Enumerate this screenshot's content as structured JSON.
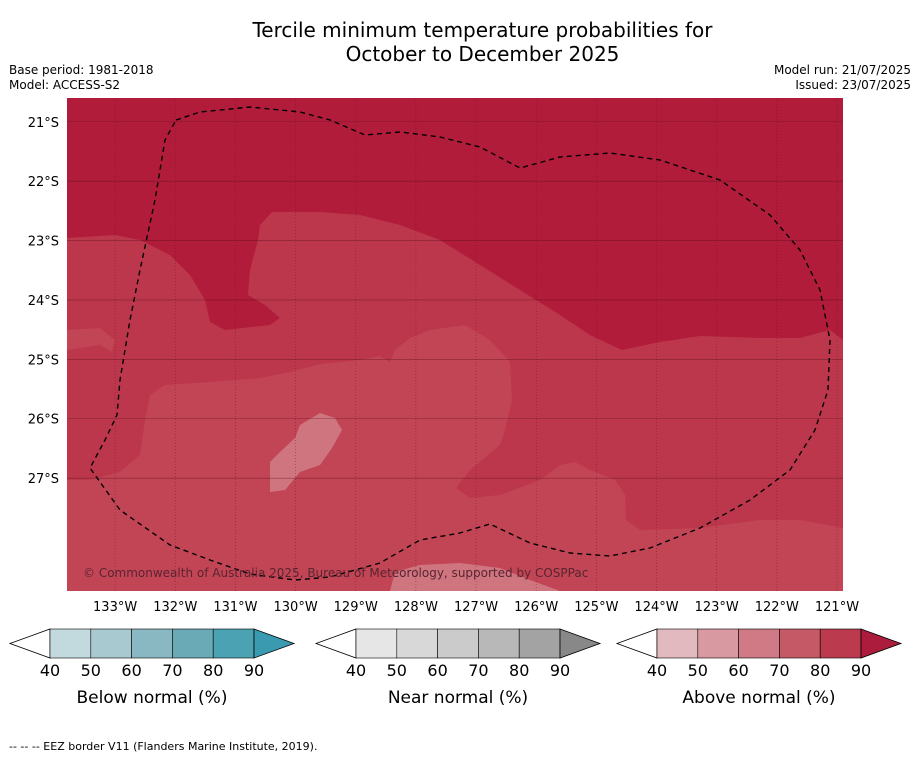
{
  "title_line1": "Tercile minimum temperature probabilities for",
  "title_line2": "October to December 2025",
  "meta_left": [
    "Base period: 1981-2018",
    "Model: ACCESS-S2"
  ],
  "meta_right": [
    "Model run: 21/07/2025",
    "Issued: 23/07/2025"
  ],
  "copyright": "© Commonwealth of Australia 2025, Bureau of Meteorology, supported by COSPPac",
  "footer": "-- -- -- EEZ border V11 (Flanders Marine Institute, 2019).",
  "map": {
    "lon_range": [
      -133.8,
      -120.9
    ],
    "lat_range": [
      -28.9,
      -20.6
    ],
    "lat_ticks": [
      "21°S",
      "22°S",
      "23°S",
      "24°S",
      "25°S",
      "26°S",
      "27°S"
    ],
    "lat_values": [
      -21,
      -22,
      -23,
      -24,
      -25,
      -26,
      -27
    ],
    "lon_ticks": [
      "133°W",
      "132°W",
      "131°W",
      "130°W",
      "129°W",
      "128°W",
      "127°W",
      "126°W",
      "125°W",
      "124°W",
      "123°W",
      "122°W",
      "121°W"
    ],
    "lon_values": [
      -133,
      -132,
      -131,
      -130,
      -129,
      -128,
      -127,
      -126,
      -125,
      -124,
      -123,
      -122,
      -121
    ],
    "colors": {
      "above_90": "#b11c3a",
      "above_80": "#bc374b",
      "above_70_80": "#c24555",
      "above_60_70": "#cf7580",
      "grid": "#5a0f20"
    }
  },
  "colorbars": [
    {
      "label": "Below normal (%)",
      "ticks": [
        "40",
        "50",
        "60",
        "70",
        "80",
        "90"
      ],
      "colors": [
        "#ffffff",
        "#c2dade",
        "#a8c9cf",
        "#8ab8c2",
        "#6aa9b6",
        "#4aa2b2",
        "#3a9bb0"
      ]
    },
    {
      "label": "Near normal (%)",
      "ticks": [
        "40",
        "50",
        "60",
        "70",
        "80",
        "90"
      ],
      "colors": [
        "#ffffff",
        "#e6e6e6",
        "#d8d8d8",
        "#cbcbcb",
        "#b8b8b8",
        "#a3a3a3",
        "#888888"
      ]
    },
    {
      "label": "Above normal (%)",
      "ticks": [
        "40",
        "50",
        "60",
        "70",
        "80",
        "90"
      ],
      "colors": [
        "#ffffff",
        "#e1b9bf",
        "#d899a1",
        "#cf7a84",
        "#c55966",
        "#bb3a4e",
        "#ac1c3c"
      ]
    }
  ]
}
